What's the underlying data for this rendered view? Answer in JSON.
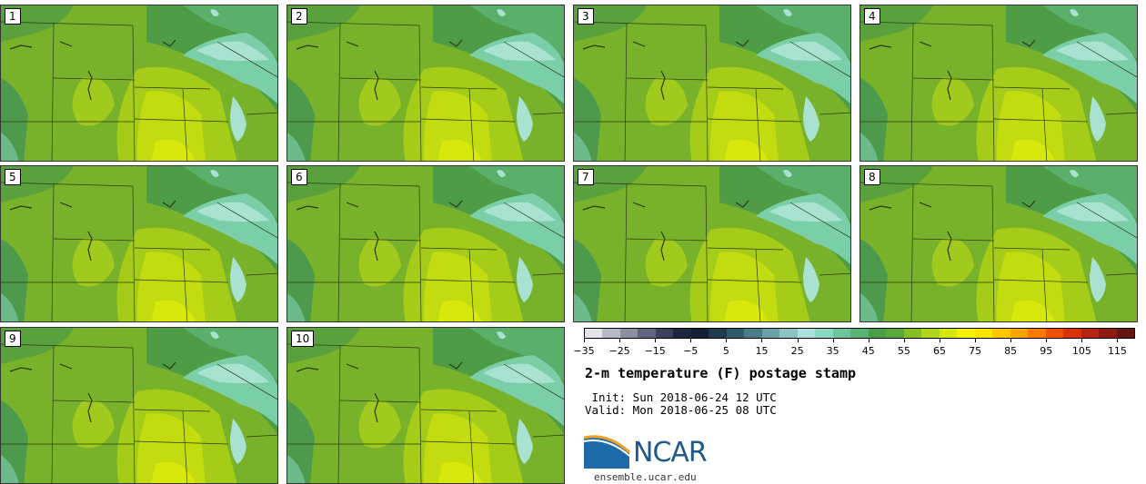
{
  "panels": [
    {
      "label": "1"
    },
    {
      "label": "2"
    },
    {
      "label": "3"
    },
    {
      "label": "4"
    },
    {
      "label": "5"
    },
    {
      "label": "6"
    },
    {
      "label": "7"
    },
    {
      "label": "8"
    },
    {
      "label": "9"
    },
    {
      "label": "10"
    }
  ],
  "colorbar": {
    "colors": [
      "#e3e3ea",
      "#b8b9c8",
      "#8c8fa3",
      "#5f6580",
      "#3a415d",
      "#1c2440",
      "#132033",
      "#1f3b4d",
      "#2e5a6a",
      "#4a7c88",
      "#6aa0a7",
      "#8cc4c4",
      "#a9e2dc",
      "#8ad8c2",
      "#6cc59b",
      "#58b474",
      "#4a9e48",
      "#5aa838",
      "#86bf22",
      "#aed61b",
      "#d4e80f",
      "#f3f00c",
      "#ffe400",
      "#ffc600",
      "#ffa300",
      "#ff7b00",
      "#ef5000",
      "#d83208",
      "#b52410",
      "#8e1a10",
      "#661410"
    ],
    "tick_labels": [
      "−35",
      "−25",
      "−15",
      "−5",
      "5",
      "15",
      "25",
      "35",
      "45",
      "55",
      "65",
      "75",
      "85",
      "95",
      "105",
      "115"
    ]
  },
  "title": "2-m temperature (F) postage stamp",
  "init": " Init: Sun 2018-06-24 12 UTC",
  "valid": "Valid: Mon 2018-06-25 08 UTC",
  "logo": {
    "text": "NCAR",
    "url": "ensemble.ucar.edu"
  }
}
